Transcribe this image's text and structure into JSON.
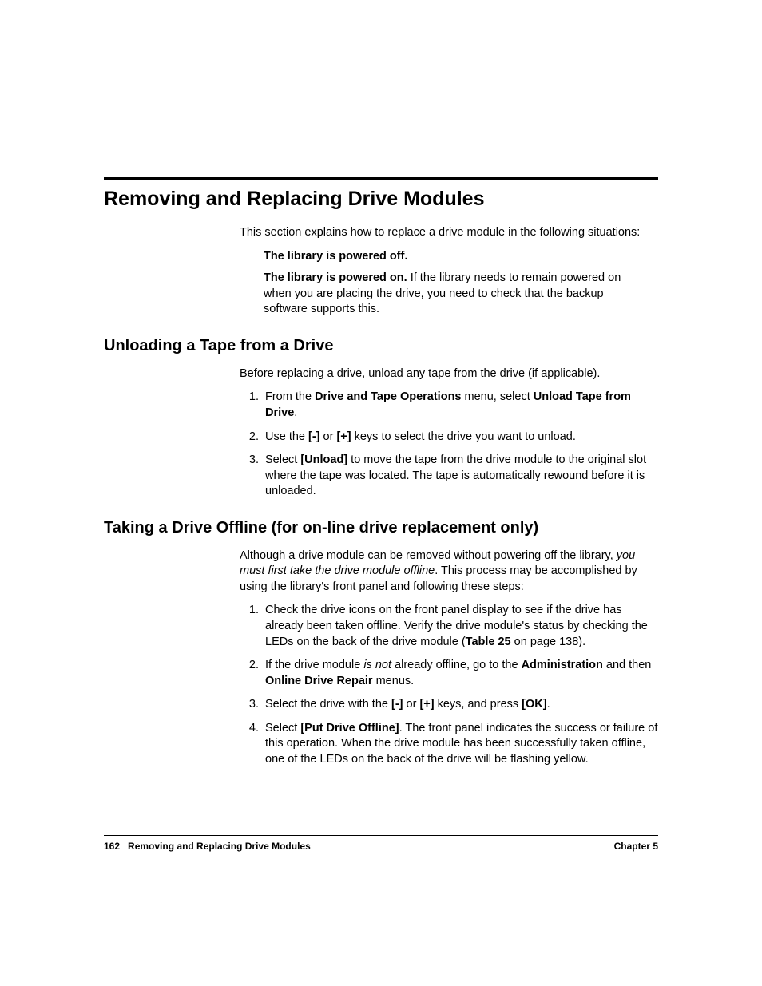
{
  "page": {
    "h1": "Removing and Replacing Drive Modules",
    "intro": "This section explains how to replace a drive module in the following situations:",
    "bullet1": "The library is powered off.",
    "bullet2_bold": "The library is powered on.",
    "bullet2_rest": " If the library needs to remain powered on when you are placing the drive, you need to check that the backup software supports this.",
    "h2a": "Unloading a Tape from a Drive",
    "sec1_intro": "Before replacing a drive, unload any tape from the drive (if applicable).",
    "sec1_li1_a": "From the ",
    "sec1_li1_b": "Drive and Tape Operations",
    "sec1_li1_c": " menu, select ",
    "sec1_li1_d": "Unload Tape from Drive",
    "sec1_li1_e": ".",
    "sec1_li2_a": "Use the ",
    "sec1_li2_b": "[-]",
    "sec1_li2_c": " or ",
    "sec1_li2_d": "[+]",
    "sec1_li2_e": " keys to select the drive you want to unload.",
    "sec1_li3_a": "Select ",
    "sec1_li3_b": "[Unload]",
    "sec1_li3_c": " to move the tape from the drive module to the original slot where the tape was located. The tape is automatically rewound before it is unloaded.",
    "h2b": "Taking a Drive Offline (for on-line drive replacement only)",
    "sec2_intro_a": "Although a drive module can be removed without powering off the library, ",
    "sec2_intro_b": "you must first take the drive module offline",
    "sec2_intro_c": ". This process may be accomplished by using the library's front panel and following these steps:",
    "sec2_li1_a": "Check the drive icons on the front panel display to see if the drive has already been taken offline. Verify the drive module's status by checking the LEDs on the back of the drive module (",
    "sec2_li1_b": "Table 25 ",
    "sec2_li1_c": " on page 138).",
    "sec2_li2_a": "If the drive module ",
    "sec2_li2_b": "is not",
    "sec2_li2_c": " already offline, go to the ",
    "sec2_li2_d": "Administration",
    "sec2_li2_e": " and then ",
    "sec2_li2_f": "Online Drive Repair",
    "sec2_li2_g": " menus.",
    "sec2_li3_a": "Select the drive with the ",
    "sec2_li3_b": "[-]",
    "sec2_li3_c": " or ",
    "sec2_li3_d": "[+]",
    "sec2_li3_e": " keys, and press ",
    "sec2_li3_f": "[OK]",
    "sec2_li3_g": ".",
    "sec2_li4_a": "Select ",
    "sec2_li4_b": "[Put Drive Offline]",
    "sec2_li4_c": ". The front panel indicates the success or failure of this operation. When the drive module has been successfully taken offline, one of the LEDs on the back of the drive will be flashing yellow."
  },
  "footer": {
    "page_num": "162",
    "section": "Removing and Replacing Drive Modules",
    "chapter": "Chapter 5"
  },
  "style": {
    "background": "#ffffff",
    "text_color": "#000000",
    "h1_fontsize": 25,
    "h2_fontsize": 20,
    "body_fontsize": 14.5,
    "footer_fontsize": 12,
    "rule_color": "#000000"
  }
}
